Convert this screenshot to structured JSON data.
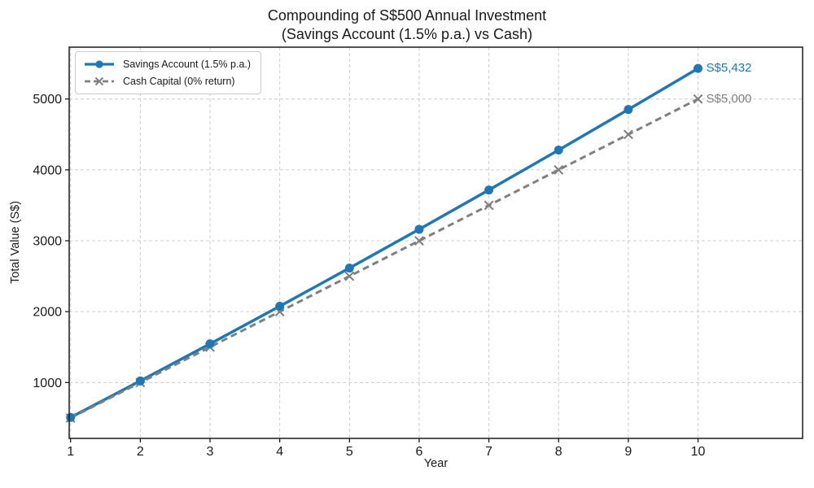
{
  "title": {
    "line1": "Compounding of S$500 Annual Investment",
    "line2": "(Savings Account (1.5% p.a.) vs Cash)"
  },
  "chart_data": {
    "type": "line",
    "title": "Compounding of S$500 Annual Investment (Savings Account (1.5% p.a.) vs Cash)",
    "x": [
      1,
      2,
      3,
      4,
      5,
      6,
      7,
      8,
      9,
      10
    ],
    "series": [
      {
        "name": "Savings Account (1.5% p.a.)",
        "color": "#1f77b4",
        "line_style": "solid",
        "marker": "circle",
        "values": [
          507.5,
          1022.6,
          1545.4,
          2076.1,
          2614.8,
          3161.5,
          3716.4,
          4279.7,
          4851.4,
          5431.6
        ],
        "end_label": "S$5,432"
      },
      {
        "name": "Cash Capital (0% return)",
        "color": "#808080",
        "line_style": "dashed",
        "marker": "x",
        "values": [
          500,
          1000,
          1500,
          2000,
          2500,
          3000,
          3500,
          4000,
          4500,
          5000
        ],
        "end_label": "S$5,000"
      }
    ],
    "xlabel": "Year",
    "ylabel": "Total Value (S$)",
    "xticks": [
      1,
      2,
      3,
      4,
      5,
      6,
      7,
      8,
      9,
      10
    ],
    "yticks": [
      1000,
      2000,
      3000,
      4000,
      5000
    ],
    "xlim": [
      0.98,
      11.5
    ],
    "ylim": [
      212,
      5731
    ],
    "grid": true,
    "grid_color": "#cccccc",
    "axis_color": "#1a1a1a",
    "background": "#ffffff",
    "legend_position": "upper left"
  }
}
